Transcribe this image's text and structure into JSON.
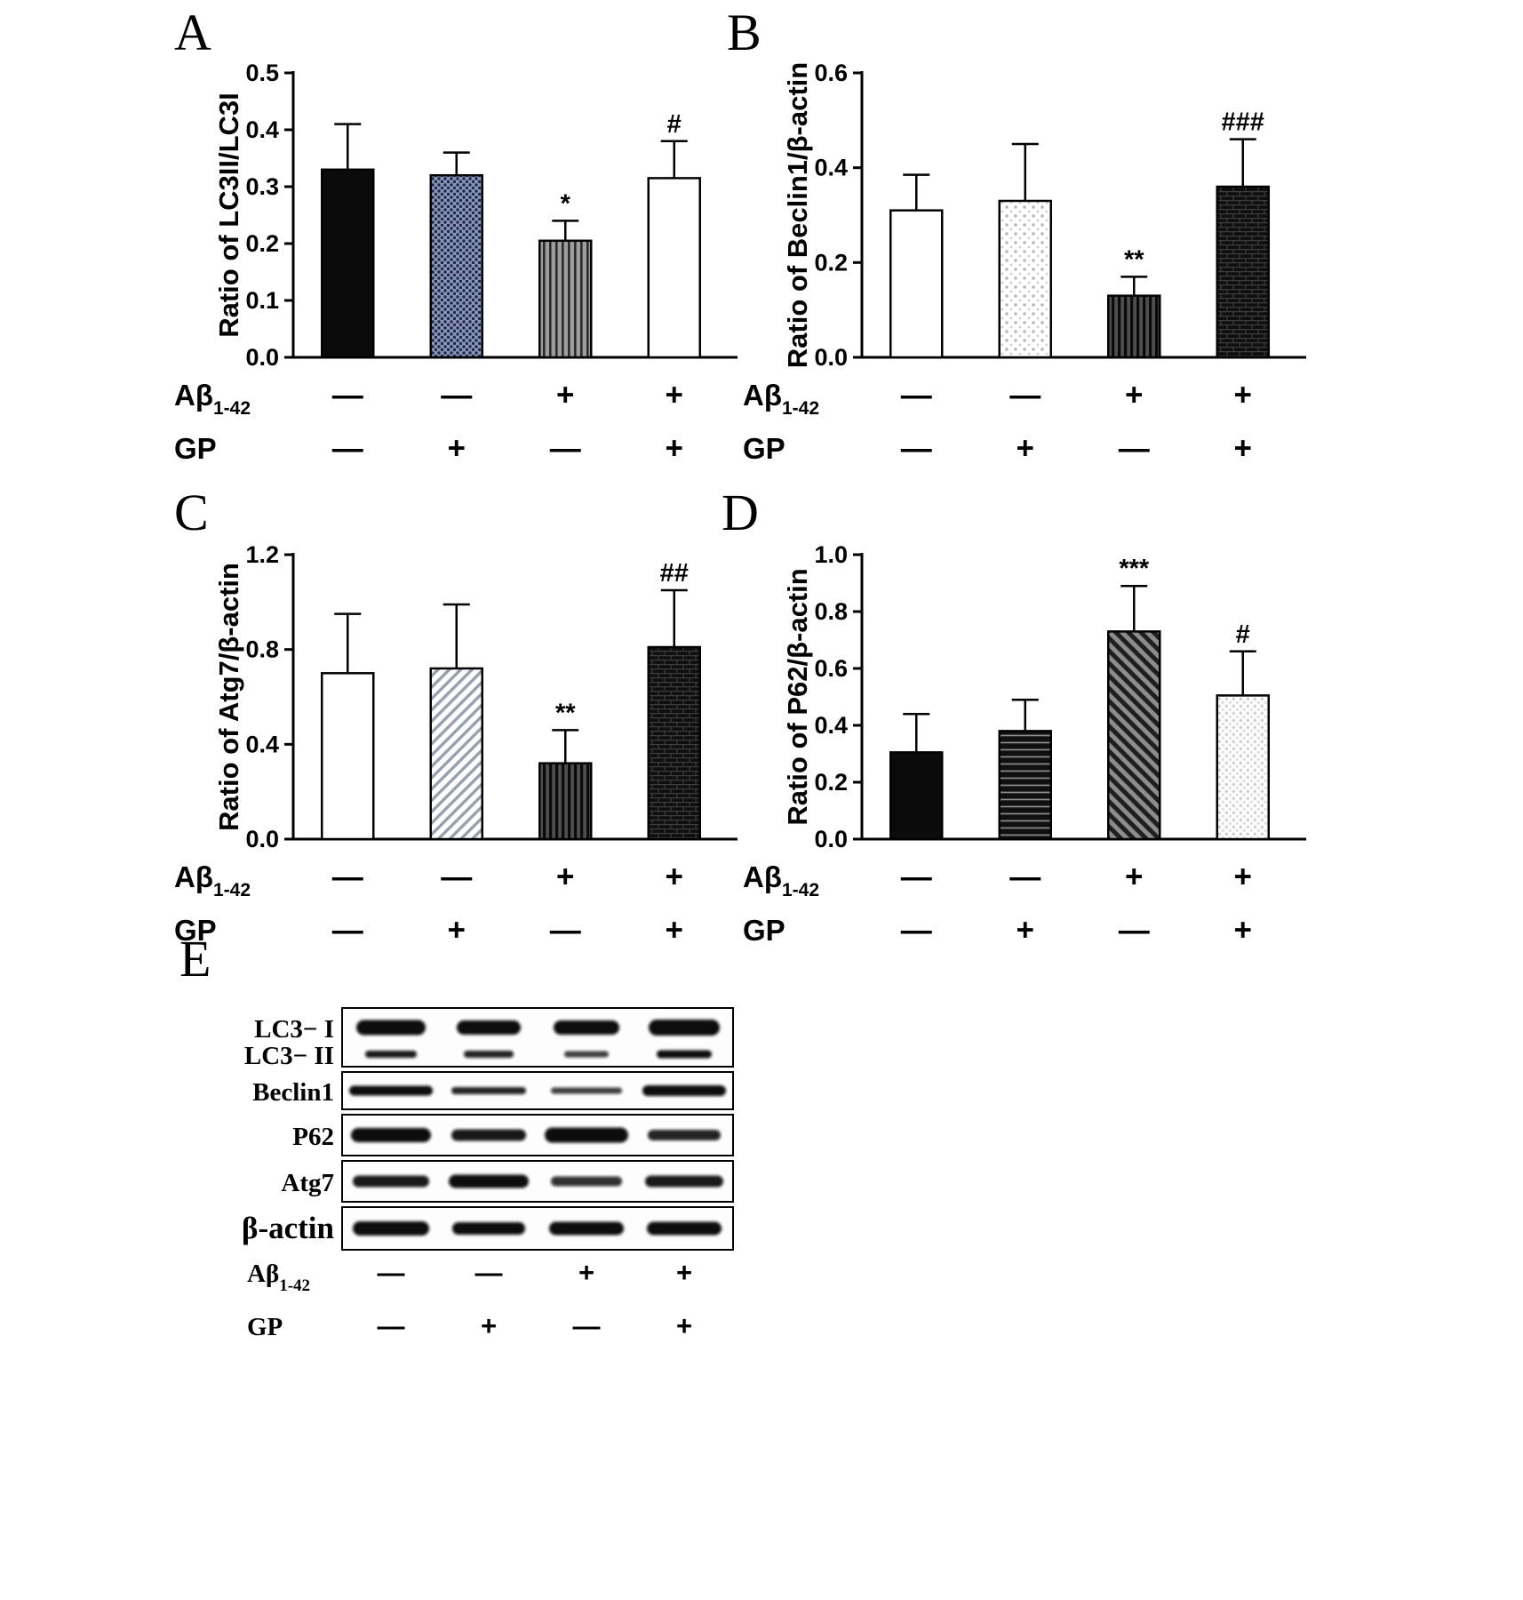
{
  "chart_data": [
    {
      "letter": "A",
      "type": "bar",
      "title": "",
      "ylabel": "Ratio of LC3II/LC3I",
      "ylim": [
        0,
        0.5
      ],
      "yticks": [
        "0.0",
        "0.1",
        "0.2",
        "0.3",
        "0.4",
        "0.5"
      ],
      "categories": [
        "Aβ1-42 − / GP −",
        "Aβ1-42 − / GP +",
        "Aβ1-42 + / GP −",
        "Aβ1-42 + / GP +"
      ],
      "values": [
        0.33,
        0.32,
        0.205,
        0.315
      ],
      "errors_upper": [
        0.08,
        0.04,
        0.035,
        0.065
      ],
      "significance": [
        "",
        "",
        "*",
        "#"
      ],
      "bar_styles": [
        "solid-black",
        "dots-dark",
        "vlines-gray",
        "white"
      ],
      "xrows": [
        {
          "label": "Aβ",
          "subscript": "1-42",
          "values": [
            "—",
            "—",
            "+",
            "+"
          ]
        },
        {
          "label": "GP",
          "subscript": "",
          "values": [
            "—",
            "+",
            "—",
            "+"
          ]
        }
      ]
    },
    {
      "letter": "B",
      "type": "bar",
      "title": "",
      "ylabel": "Ratio of Beclin1/β-actin",
      "ylim": [
        0,
        0.6
      ],
      "yticks": [
        "0.0",
        "0.2",
        "0.4",
        "0.6"
      ],
      "categories": [
        "Aβ1-42 − / GP −",
        "Aβ1-42 − / GP +",
        "Aβ1-42 + / GP −",
        "Aβ1-42 + / GP +"
      ],
      "values": [
        0.31,
        0.33,
        0.13,
        0.36
      ],
      "errors_upper": [
        0.075,
        0.12,
        0.04,
        0.1
      ],
      "significance": [
        "",
        "",
        "**",
        "###"
      ],
      "bar_styles": [
        "white",
        "dots-light",
        "vlines-dark",
        "brick-dark"
      ],
      "xrows": [
        {
          "label": "Aβ",
          "subscript": "1-42",
          "values": [
            "—",
            "—",
            "+",
            "+"
          ]
        },
        {
          "label": "GP",
          "subscript": "",
          "values": [
            "—",
            "+",
            "—",
            "+"
          ]
        }
      ]
    },
    {
      "letter": "C",
      "type": "bar",
      "title": "",
      "ylabel": "Ratio of Atg7/β-actin",
      "ylim": [
        0,
        1.2
      ],
      "yticks": [
        "0.0",
        "0.4",
        "0.8",
        "1.2"
      ],
      "categories": [
        "Aβ1-42 − / GP −",
        "Aβ1-42 − / GP +",
        "Aβ1-42 + / GP −",
        "Aβ1-42 + / GP +"
      ],
      "values": [
        0.7,
        0.72,
        0.32,
        0.81
      ],
      "errors_upper": [
        0.25,
        0.27,
        0.14,
        0.24
      ],
      "significance": [
        "",
        "",
        "**",
        "##"
      ],
      "bar_styles": [
        "white",
        "diag-light",
        "vlines-dark",
        "brick-dark"
      ],
      "xrows": [
        {
          "label": "Aβ",
          "subscript": "1-42",
          "values": [
            "—",
            "—",
            "+",
            "+"
          ]
        },
        {
          "label": "GP",
          "subscript": "",
          "values": [
            "—",
            "+",
            "—",
            "+"
          ]
        }
      ]
    },
    {
      "letter": "D",
      "type": "bar",
      "title": "",
      "ylabel": "Ratio of P62/β-actin",
      "ylim": [
        0,
        1.0
      ],
      "yticks": [
        "0.0",
        "0.2",
        "0.4",
        "0.6",
        "0.8",
        "1.0"
      ],
      "categories": [
        "Aβ1-42 − / GP −",
        "Aβ1-42 − / GP +",
        "Aβ1-42 + / GP −",
        "Aβ1-42 + / GP +"
      ],
      "values": [
        0.305,
        0.38,
        0.73,
        0.505
      ],
      "errors_upper": [
        0.135,
        0.11,
        0.16,
        0.155
      ],
      "significance": [
        "",
        "",
        "***",
        "#"
      ],
      "bar_styles": [
        "solid-black",
        "hlines-dark",
        "diag-dark",
        "grid-light"
      ],
      "xrows": [
        {
          "label": "Aβ",
          "subscript": "1-42",
          "values": [
            "—",
            "—",
            "+",
            "+"
          ]
        },
        {
          "label": "GP",
          "subscript": "",
          "values": [
            "—",
            "+",
            "—",
            "+"
          ]
        }
      ]
    }
  ],
  "western": {
    "panel_label": "E",
    "lanes": 4,
    "band_rows": [
      {
        "label": "LC3− I",
        "size": "normal",
        "bands": [
          [
            78,
            17,
            1
          ],
          [
            72,
            16,
            1
          ],
          [
            74,
            16,
            1
          ],
          [
            80,
            18,
            1
          ]
        ]
      },
      {
        "label": "LC3− II",
        "size": "normal",
        "bands": [
          [
            58,
            8,
            0.95
          ],
          [
            56,
            8,
            0.9
          ],
          [
            50,
            7,
            0.8
          ],
          [
            62,
            9,
            1
          ]
        ]
      },
      {
        "label": "Beclin1",
        "size": "normal",
        "bands": [
          [
            94,
            11,
            1
          ],
          [
            84,
            8,
            0.9
          ],
          [
            80,
            7,
            0.8
          ],
          [
            94,
            12,
            1
          ]
        ]
      },
      {
        "label": "P62",
        "size": "normal",
        "bands": [
          [
            90,
            16,
            1
          ],
          [
            84,
            13,
            0.95
          ],
          [
            94,
            17,
            1
          ],
          [
            82,
            12,
            0.9
          ]
        ]
      },
      {
        "label": "Atg7",
        "size": "normal",
        "bands": [
          [
            86,
            13,
            0.95
          ],
          [
            90,
            15,
            1
          ],
          [
            80,
            11,
            0.85
          ],
          [
            88,
            13,
            0.95
          ]
        ]
      },
      {
        "label": "β-actin",
        "size": "large",
        "bands": [
          [
            86,
            16,
            1
          ],
          [
            82,
            14,
            1
          ],
          [
            84,
            15,
            1
          ],
          [
            84,
            15,
            1
          ]
        ]
      }
    ],
    "xrows": [
      {
        "label": "Aβ",
        "subscript": "1-42",
        "values": [
          "—",
          "—",
          "+",
          "+"
        ]
      },
      {
        "label": "GP",
        "subscript": "",
        "values": [
          "—",
          "+",
          "—",
          "+"
        ]
      }
    ]
  },
  "colors": {
    "ink": "#000000",
    "background": "#ffffff"
  }
}
